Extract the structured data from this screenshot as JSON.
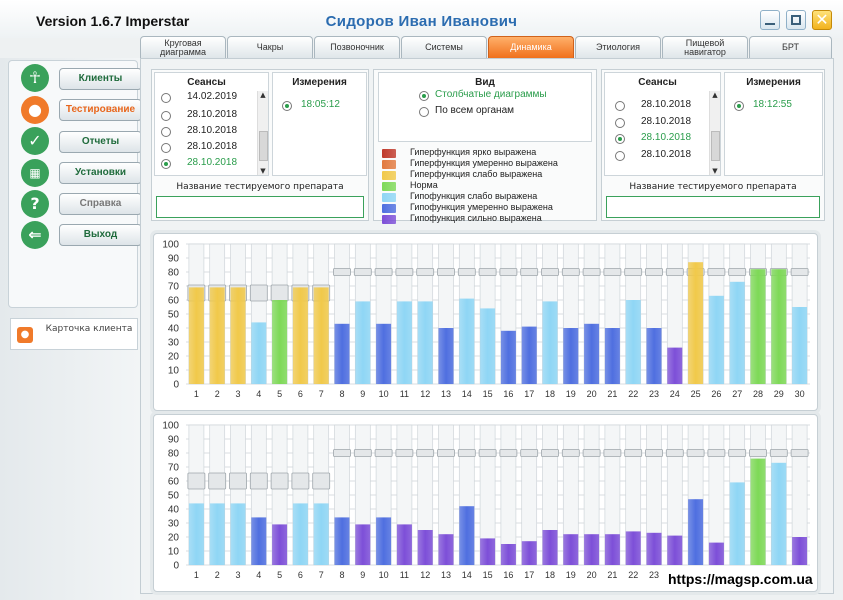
{
  "app": {
    "version": "Version 1.6.7 Imperstar",
    "client": "Сидоров  Иван  Иванович"
  },
  "window": {
    "close_glyph": "✕"
  },
  "tabs": [
    {
      "label": "Круговая диаграмма",
      "active": false
    },
    {
      "label": "Чакры",
      "active": false
    },
    {
      "label": "Позвоночник",
      "active": false
    },
    {
      "label": "Системы",
      "active": false
    },
    {
      "label": "Динамика",
      "active": true
    },
    {
      "label": "Этиология",
      "active": false
    },
    {
      "label": "Пищевой навигатор",
      "active": false
    },
    {
      "label": "БРТ",
      "active": false
    }
  ],
  "sidebar": {
    "items": [
      {
        "label": "Клиенты",
        "icon": "person-icon",
        "color": "#3aa15b",
        "state": "normal"
      },
      {
        "label": "Тестирование",
        "icon": "user-test-icon",
        "color": "#f07a2a",
        "state": "active"
      },
      {
        "label": "Отчеты",
        "icon": "check-icon",
        "color": "#3aa15b",
        "state": "normal"
      },
      {
        "label": "Установки",
        "icon": "grid-icon",
        "color": "#3aa15b",
        "state": "normal"
      },
      {
        "label": "Справка",
        "icon": "help-icon",
        "color": "#3aa15b",
        "state": "disabled"
      },
      {
        "label": "Выход",
        "icon": "exit-icon",
        "color": "#3aa15b",
        "state": "normal"
      }
    ],
    "card_label": "Карточка клиента"
  },
  "left_sessions": {
    "title": "Сеансы",
    "items": [
      "14.02.2019",
      "28.10.2018",
      "28.10.2018",
      "28.10.2018",
      "28.10.2018"
    ],
    "selected": 4,
    "measure_title": "Измерения",
    "measure": "18:05:12",
    "drug_label": "Название тестируемого препарата",
    "drug_value": ""
  },
  "right_sessions": {
    "title": "Сеансы",
    "items": [
      "",
      "28.10.2018",
      "28.10.2018",
      "28.10.2018",
      "28.10.2018"
    ],
    "selected": 3,
    "measure_title": "Измерения",
    "measure": "18:12:55",
    "drug_label": "Название тестируемого препарата",
    "drug_value": ""
  },
  "view": {
    "title": "Вид",
    "options": [
      {
        "label": "Столбчатые диаграммы",
        "selected": true
      },
      {
        "label": "По всем органам",
        "selected": false
      }
    ]
  },
  "legend": [
    {
      "label": "Гиперфункция ярко выражена",
      "color": "#c0392b"
    },
    {
      "label": "Гиперфункция умеренно выражена",
      "color": "#e27a3f"
    },
    {
      "label": "Гиперфункция слабо выражена",
      "color": "#f1c94a"
    },
    {
      "label": "Норма",
      "color": "#7ed957"
    },
    {
      "label": "Гипофункция слабо выражена",
      "color": "#8fd6f5"
    },
    {
      "label": "Гипофункция умеренно выражена",
      "color": "#4f6fe0"
    },
    {
      "label": "Гипофункция сильно выражена",
      "color": "#7d4fd8"
    }
  ],
  "chart_data": [
    {
      "type": "bar",
      "categories": [
        "1",
        "2",
        "3",
        "4",
        "5",
        "6",
        "7",
        "8",
        "9",
        "10",
        "11",
        "12",
        "13",
        "14",
        "15",
        "16",
        "17",
        "18",
        "19",
        "20",
        "21",
        "22",
        "23",
        "24",
        "25",
        "26",
        "27",
        "28",
        "29",
        "30"
      ],
      "values": [
        69,
        69,
        69,
        44,
        60,
        69,
        69,
        43,
        59,
        43,
        59,
        59,
        40,
        61,
        54,
        38,
        41,
        59,
        40,
        43,
        40,
        60,
        40,
        26,
        87,
        63,
        73,
        82,
        82,
        55
      ],
      "levels": [
        2,
        2,
        2,
        4,
        3,
        2,
        2,
        5,
        4,
        5,
        4,
        4,
        5,
        4,
        4,
        5,
        5,
        4,
        5,
        5,
        5,
        4,
        5,
        6,
        2,
        4,
        4,
        3,
        3,
        4
      ],
      "markers": [
        65,
        65,
        65,
        65,
        65,
        65,
        65,
        80,
        80,
        80,
        80,
        80,
        80,
        80,
        80,
        80,
        80,
        80,
        80,
        80,
        80,
        80,
        80,
        80,
        80,
        80,
        80,
        80,
        80,
        80
      ],
      "ylim": [
        0,
        100
      ],
      "yticks": [
        "0",
        "10",
        "20",
        "30",
        "40",
        "50",
        "60",
        "70",
        "80",
        "90",
        "100"
      ]
    },
    {
      "type": "bar",
      "categories": [
        "1",
        "2",
        "3",
        "4",
        "5",
        "6",
        "7",
        "8",
        "9",
        "10",
        "11",
        "12",
        "13",
        "14",
        "15",
        "16",
        "17",
        "18",
        "19",
        "20",
        "21",
        "22",
        "23",
        "24",
        "25",
        "26",
        "27",
        "28",
        "29",
        "30"
      ],
      "values": [
        44,
        44,
        44,
        34,
        29,
        44,
        44,
        34,
        29,
        34,
        29,
        25,
        22,
        42,
        19,
        15,
        17,
        25,
        22,
        22,
        22,
        24,
        23,
        21,
        47,
        16,
        59,
        76,
        73,
        20
      ],
      "levels": [
        4,
        4,
        4,
        5,
        6,
        4,
        4,
        5,
        6,
        5,
        6,
        6,
        6,
        5,
        6,
        6,
        6,
        6,
        6,
        6,
        6,
        6,
        6,
        6,
        5,
        6,
        4,
        3,
        4,
        6
      ],
      "markers": [
        60,
        60,
        60,
        60,
        60,
        60,
        60,
        80,
        80,
        80,
        80,
        80,
        80,
        80,
        80,
        80,
        80,
        80,
        80,
        80,
        80,
        80,
        80,
        80,
        80,
        80,
        80,
        80,
        80,
        80
      ],
      "ylim": [
        0,
        100
      ],
      "yticks": [
        "0",
        "10",
        "20",
        "30",
        "40",
        "50",
        "60",
        "70",
        "80",
        "90",
        "100"
      ]
    }
  ],
  "watermark": "https://magsp.com.ua"
}
